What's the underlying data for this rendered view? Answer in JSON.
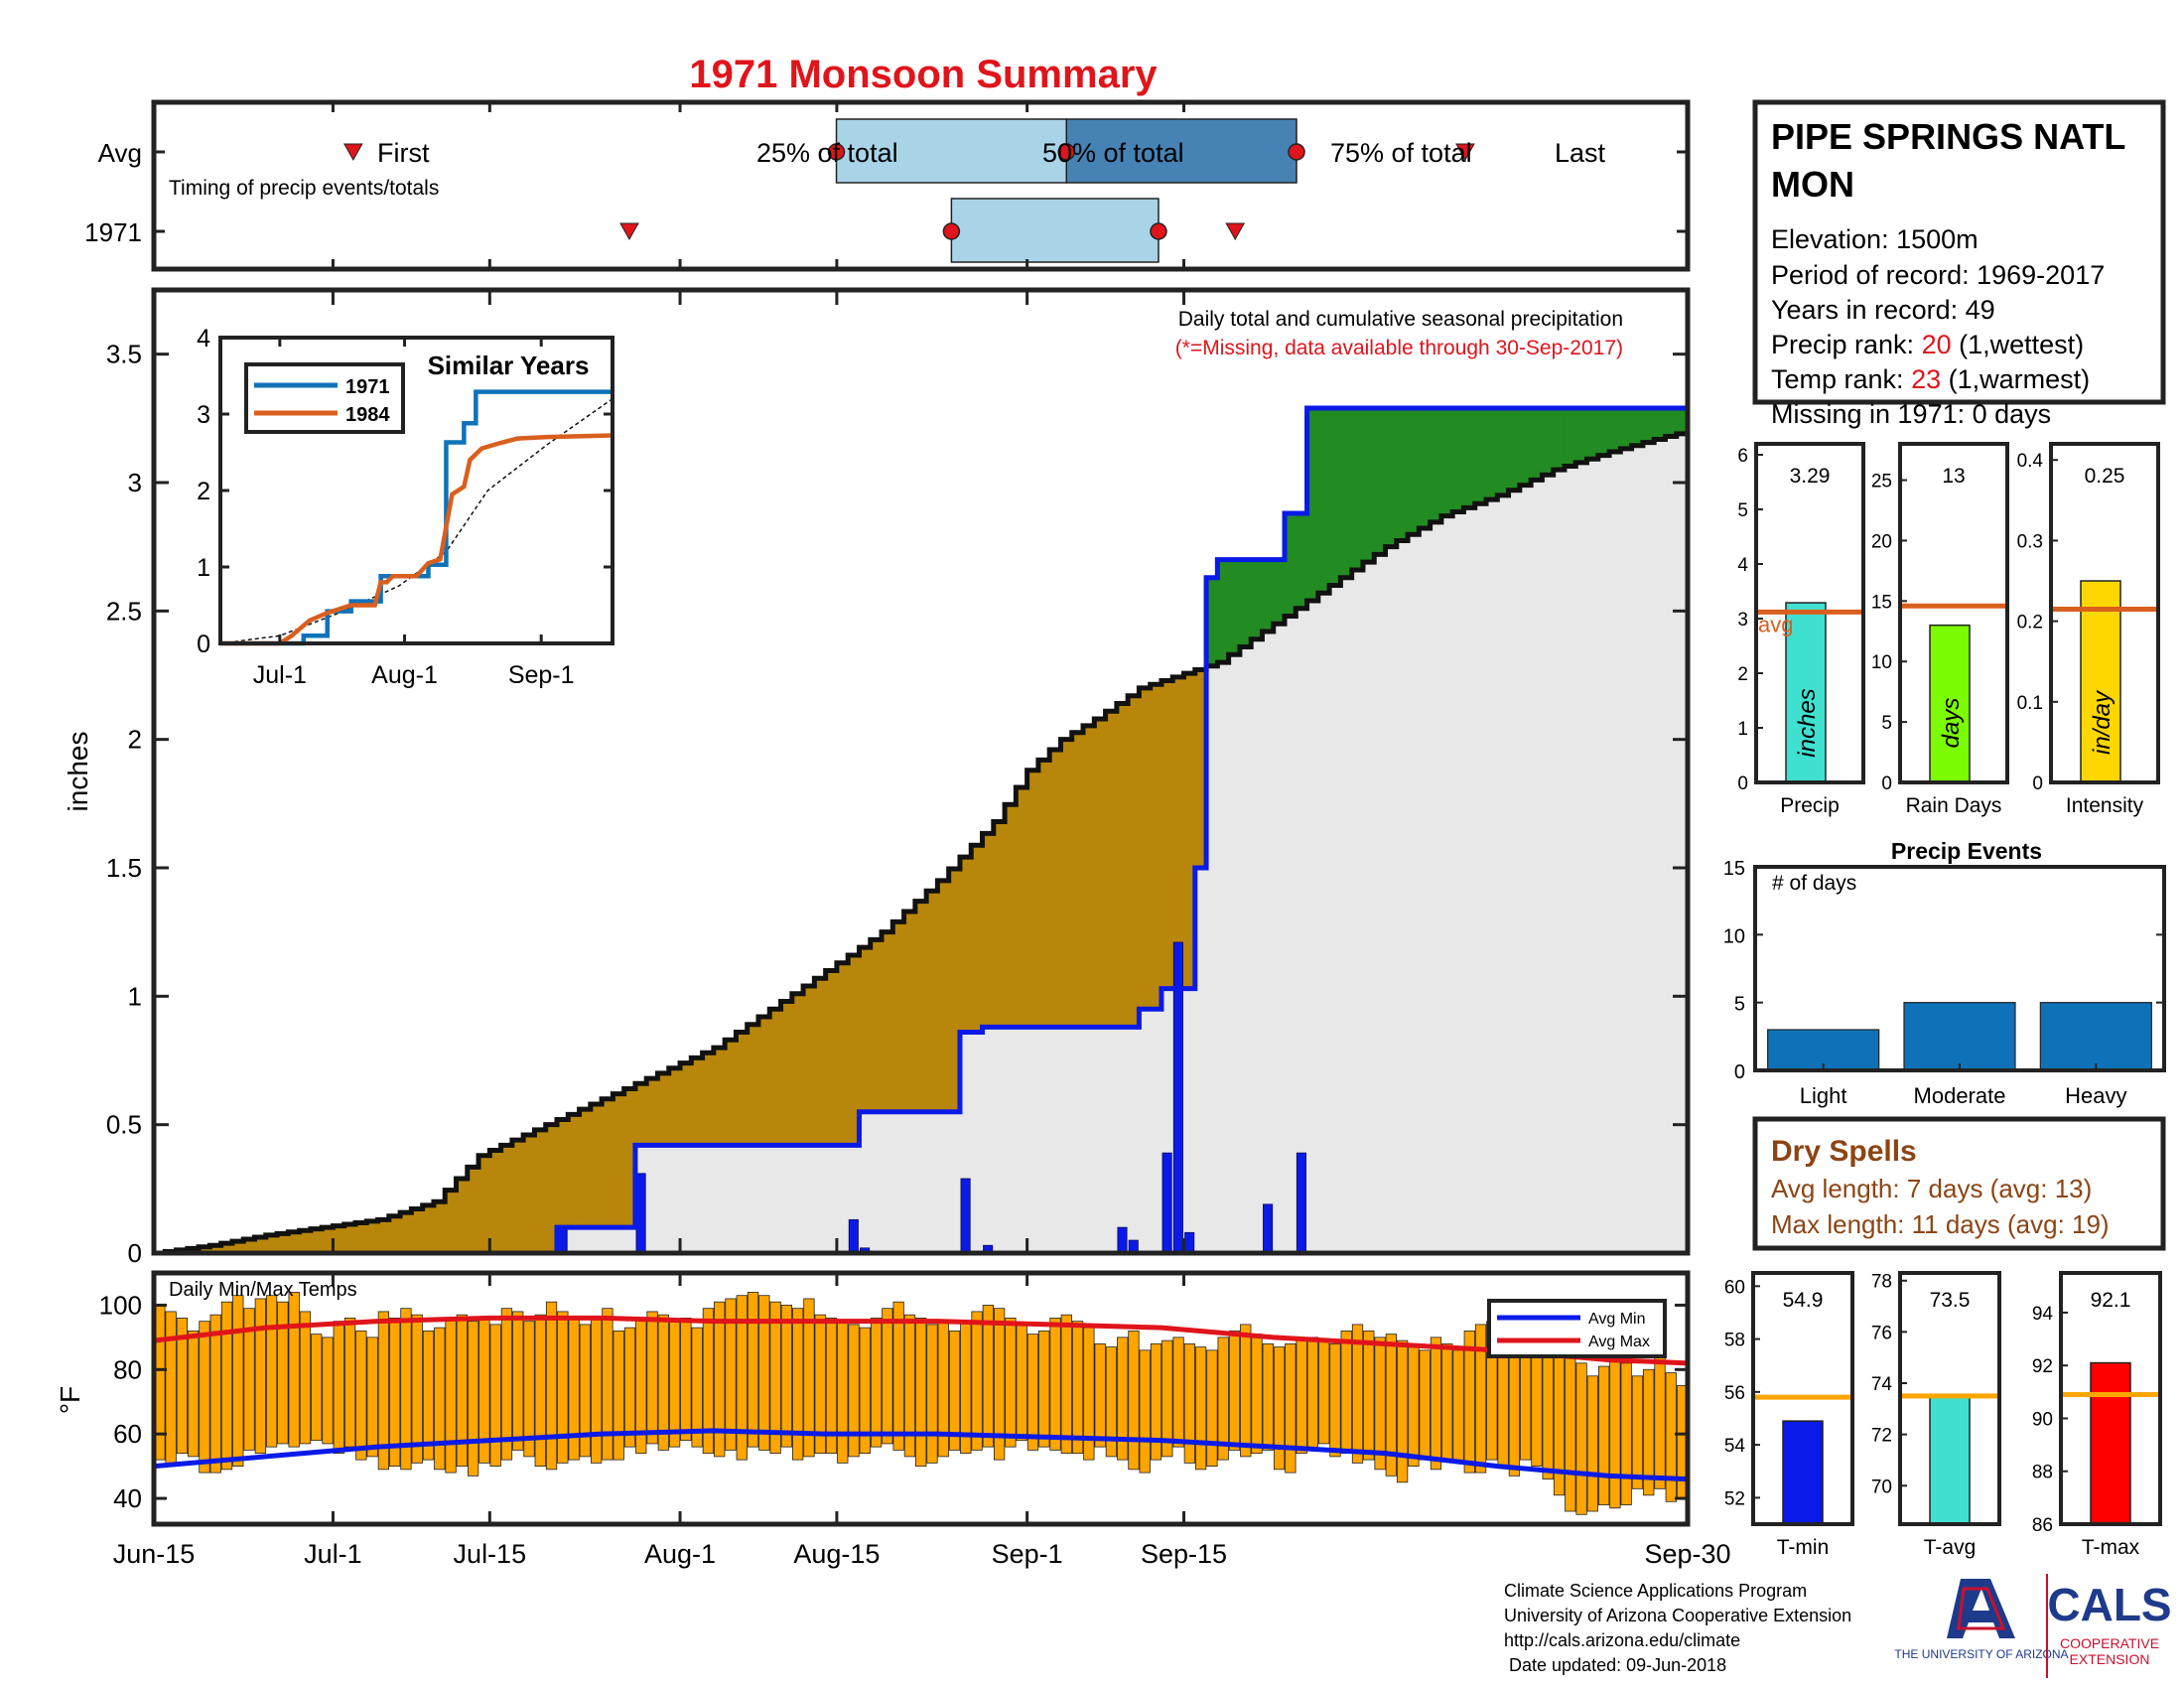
{
  "title": "1971 Monsoon Summary",
  "station": {
    "name_line1": "PIPE SPRINGS NATL",
    "name_line2": "MON",
    "elevation": "Elevation: 1500m",
    "period": "Period of record: 1969-2017",
    "years": "Years in record: 49",
    "precip_rank_label": "Precip rank: ",
    "precip_rank_value": "20",
    "precip_rank_note": " (1,wettest)",
    "temp_rank_label": "Temp rank: ",
    "temp_rank_value": "23",
    "temp_rank_note": " (1,warmest)",
    "missing": "Missing in 1971: 0 days"
  },
  "timing": {
    "row_avg": "Avg",
    "row_year": "1971",
    "caption": "Timing of precip events/totals",
    "avg_first": "First",
    "avg_25": "25% of total",
    "avg_50": "50% of total",
    "avg_75": "75% of total",
    "avg_last": "Last",
    "x_avg": {
      "first": 13.0,
      "p25": 44.5,
      "p50": 59.5,
      "p75": 74.5,
      "last": 85.5
    },
    "x_year": {
      "first": 31.0,
      "p25": 52.0,
      "p50": 59.0,
      "p75": 65.5,
      "last": 70.5
    }
  },
  "main": {
    "note1": "Daily total and cumulative seasonal precipitation",
    "note2": "(*=Missing, data available through 30-Sep-2017)",
    "ylabel": "inches",
    "yticks": [
      "0",
      "0.5",
      "1",
      "1.5",
      "2",
      "2.5",
      "3",
      "3.5"
    ],
    "xticks": [
      "Jun-15",
      "Jul-1",
      "Jul-15",
      "Aug-1",
      "Aug-15",
      "Sep-1",
      "Sep-15",
      "Sep-30"
    ]
  },
  "inset": {
    "title": "Similar Years",
    "legend": [
      "1971",
      "1984"
    ],
    "yticks": [
      "0",
      "1",
      "2",
      "3",
      "4"
    ],
    "xticks": [
      "Jul-1",
      "Aug-1",
      "Sep-1"
    ]
  },
  "small_bars": [
    {
      "label": "Precip",
      "value_text": "3.29",
      "unit": "inches",
      "avg_label": "avg",
      "yticks": [
        "0",
        "1",
        "2",
        "3",
        "4",
        "5",
        "6"
      ]
    },
    {
      "label": "Rain Days",
      "value_text": "13",
      "unit": "days",
      "yticks": [
        "0",
        "5",
        "10",
        "15",
        "20",
        "25"
      ]
    },
    {
      "label": "Intensity",
      "value_text": "0.25",
      "unit": "in/day",
      "yticks": [
        "0",
        "0.1",
        "0.2",
        "0.3",
        "0.4"
      ]
    }
  ],
  "events": {
    "title": "Precip Events",
    "ylabel": "# of days",
    "categories": [
      "Light",
      "Moderate",
      "Heavy"
    ],
    "yticks": [
      "0",
      "5",
      "10",
      "15"
    ]
  },
  "dry": {
    "title": "Dry Spells",
    "avg_length": "Avg length: 7 days (avg: 13)",
    "max_length": "Max length: 11 days (avg: 19)"
  },
  "temps": {
    "caption": "Daily Min/Max Temps",
    "ylabel": "°F",
    "yticks": [
      "40",
      "60",
      "80",
      "100"
    ],
    "legend_min": "Avg Min",
    "legend_max": "Avg Max"
  },
  "temp_bars": [
    {
      "label": "T-min",
      "value_text": "54.9",
      "yticks": [
        "52",
        "54",
        "56",
        "58",
        "60"
      ]
    },
    {
      "label": "T-avg",
      "value_text": "73.5",
      "yticks": [
        "70",
        "72",
        "74",
        "76",
        "78"
      ]
    },
    {
      "label": "T-max",
      "value_text": "92.1",
      "yticks": [
        "86",
        "88",
        "90",
        "92",
        "94"
      ]
    }
  ],
  "footer": {
    "line1": "Climate Science Applications Program",
    "line2": "University of Arizona Cooperative Extension",
    "line3": "http://cals.arizona.edu/climate",
    "line4": "Date updated: 09-Jun-2018",
    "ua_logo_text": "THE UNIVERSITY OF ARIZONA",
    "cals_logo": "CALS",
    "cals_sub1": "COOPERATIVE",
    "cals_sub2": "EXTENSION"
  },
  "colors": {
    "title_red": "#e0141b",
    "rank_red": "#e0141b",
    "dry_brown": "#8b4513",
    "deficit": "#b8860b",
    "surplus": "#228b22",
    "normal_fill": "#e8e8e8",
    "year_line": "#0a1ae8",
    "daily_bars": "#0a1ae8",
    "orange_avg": "#d95f1e",
    "temp_bar": "#ffa500",
    "light_blue_box": "#a9d4e8",
    "dark_blue_box": "#4682b4"
  },
  "chart_data": [
    {
      "type": "area",
      "name": "cumulative_precip",
      "x_unit": "day since Jun-15",
      "average_cumulative": [
        [
          0,
          0
        ],
        [
          5,
          0.03
        ],
        [
          10,
          0.07
        ],
        [
          15,
          0.1
        ],
        [
          20,
          0.13
        ],
        [
          25,
          0.2
        ],
        [
          29,
          0.38
        ],
        [
          35,
          0.5
        ],
        [
          40,
          0.6
        ],
        [
          45,
          0.7
        ],
        [
          50,
          0.8
        ],
        [
          55,
          0.95
        ],
        [
          60,
          1.1
        ],
        [
          65,
          1.25
        ],
        [
          70,
          1.45
        ],
        [
          75,
          1.68
        ],
        [
          78,
          1.88
        ],
        [
          81,
          2.0
        ],
        [
          84,
          2.08
        ],
        [
          88,
          2.2
        ],
        [
          95,
          2.3
        ],
        [
          100,
          2.45
        ],
        [
          105,
          2.6
        ],
        [
          110,
          2.75
        ],
        [
          115,
          2.87
        ],
        [
          120,
          2.95
        ],
        [
          125,
          3.05
        ],
        [
          130,
          3.12
        ],
        [
          135,
          3.18
        ],
        [
          137,
          3.2
        ]
      ],
      "year_cumulative": [
        [
          0,
          0
        ],
        [
          36,
          0
        ],
        [
          36,
          0.1
        ],
        [
          43,
          0.1
        ],
        [
          43,
          0.42
        ],
        [
          63,
          0.42
        ],
        [
          63,
          0.55
        ],
        [
          72,
          0.55
        ],
        [
          72,
          0.86
        ],
        [
          74,
          0.86
        ],
        [
          74,
          0.88
        ],
        [
          88,
          0.88
        ],
        [
          88,
          0.95
        ],
        [
          90,
          0.95
        ],
        [
          90,
          1.03
        ],
        [
          93,
          1.03
        ],
        [
          93,
          1.5
        ],
        [
          94,
          1.5
        ],
        [
          94,
          2.63
        ],
        [
          95,
          2.63
        ],
        [
          95,
          2.7
        ],
        [
          101,
          2.7
        ],
        [
          101,
          2.88
        ],
        [
          103,
          2.88
        ],
        [
          103,
          3.29
        ],
        [
          137,
          3.29
        ]
      ],
      "daily_precip": [
        [
          36,
          0.1
        ],
        [
          43,
          0.31
        ],
        [
          62,
          0.13
        ],
        [
          63,
          0.02
        ],
        [
          72,
          0.29
        ],
        [
          74,
          0.03
        ],
        [
          86,
          0.1
        ],
        [
          87,
          0.05
        ],
        [
          90,
          0.39
        ],
        [
          91,
          1.21
        ],
        [
          92,
          0.08
        ],
        [
          99,
          0.19
        ],
        [
          102,
          0.39
        ]
      ],
      "ylim": [
        0,
        3.75
      ]
    },
    {
      "type": "line",
      "name": "similar_years",
      "title": "Similar Years",
      "series": [
        {
          "name": "1971",
          "values": [
            [
              0,
              0
            ],
            [
              14,
              0
            ],
            [
              14,
              0.1
            ],
            [
              18,
              0.1
            ],
            [
              18,
              0.42
            ],
            [
              22,
              0.42
            ],
            [
              22,
              0.55
            ],
            [
              27,
              0.55
            ],
            [
              27,
              0.88
            ],
            [
              35,
              0.88
            ],
            [
              35,
              1.03
            ],
            [
              38,
              1.03
            ],
            [
              38,
              2.63
            ],
            [
              41,
              2.63
            ],
            [
              41,
              2.88
            ],
            [
              43,
              2.88
            ],
            [
              43,
              3.29
            ],
            [
              66,
              3.29
            ]
          ]
        },
        {
          "name": "1984",
          "values": [
            [
              0,
              0
            ],
            [
              10,
              0
            ],
            [
              12,
              0.1
            ],
            [
              15,
              0.3
            ],
            [
              18,
              0.4
            ],
            [
              22,
              0.5
            ],
            [
              26,
              0.5
            ],
            [
              27,
              0.8
            ],
            [
              28,
              0.8
            ],
            [
              29,
              0.88
            ],
            [
              33,
              0.88
            ],
            [
              35,
              1.05
            ],
            [
              37,
              1.1
            ],
            [
              39,
              1.95
            ],
            [
              40,
              2.0
            ],
            [
              41,
              2.05
            ],
            [
              42,
              2.4
            ],
            [
              44,
              2.55
            ],
            [
              47,
              2.62
            ],
            [
              50,
              2.68
            ],
            [
              55,
              2.7
            ],
            [
              66,
              2.72
            ]
          ]
        }
      ],
      "average": [
        [
          0,
          0
        ],
        [
          10,
          0.1
        ],
        [
          20,
          0.4
        ],
        [
          30,
          0.75
        ],
        [
          38,
          1.2
        ],
        [
          45,
          2.0
        ],
        [
          55,
          2.6
        ],
        [
          66,
          3.2
        ]
      ],
      "ylim": [
        0,
        4
      ]
    },
    {
      "type": "bar",
      "name": "season_totals",
      "categories": [
        "Precip",
        "Rain Days",
        "Intensity"
      ],
      "values": [
        3.29,
        13,
        0.25
      ],
      "averages": [
        3.12,
        14.6,
        0.215
      ],
      "ylims": [
        [
          0,
          6.2
        ],
        [
          0,
          28
        ],
        [
          0,
          0.42
        ]
      ]
    },
    {
      "type": "bar",
      "name": "precip_events",
      "categories": [
        "Light",
        "Moderate",
        "Heavy"
      ],
      "values": [
        3,
        5,
        5
      ],
      "ylim": [
        0,
        15
      ]
    },
    {
      "type": "bar",
      "name": "daily_temps",
      "ylim": [
        32,
        110
      ],
      "tmax": [
        100,
        98,
        96,
        92,
        95,
        97,
        101,
        103,
        99,
        102,
        103,
        101,
        104,
        98,
        91,
        90,
        95,
        96,
        92,
        90,
        98,
        96,
        99,
        97,
        92,
        93,
        96,
        97,
        95,
        96,
        94,
        99,
        98,
        95,
        97,
        101,
        98,
        96,
        94,
        96,
        99,
        92,
        93,
        96,
        98,
        97,
        95,
        96,
        93,
        99,
        101,
        102,
        103,
        104,
        103,
        101,
        100,
        99,
        102,
        97,
        96,
        95,
        94,
        93,
        96,
        99,
        101,
        97,
        96,
        94,
        95,
        92,
        95,
        98,
        100,
        99,
        96,
        94,
        91,
        92,
        96,
        97,
        95,
        93,
        88,
        87,
        90,
        92,
        86,
        88,
        89,
        90,
        88,
        87,
        86,
        90,
        92,
        94,
        91,
        88,
        87,
        88,
        89,
        90,
        89,
        88,
        92,
        94,
        92,
        90,
        91,
        89,
        88,
        86,
        90,
        88,
        86,
        92,
        94,
        95,
        96,
        93,
        92,
        95,
        94,
        90,
        88,
        82,
        78,
        81,
        84,
        82,
        78,
        80,
        84,
        79,
        75
      ],
      "tmin": [
        52,
        51,
        54,
        53,
        48,
        48,
        49,
        50,
        55,
        54,
        56,
        57,
        56,
        57,
        58,
        57,
        54,
        56,
        52,
        53,
        49,
        50,
        49,
        51,
        52,
        49,
        48,
        50,
        47,
        51,
        50,
        52,
        55,
        53,
        50,
        49,
        51,
        52,
        53,
        51,
        52,
        52,
        56,
        54,
        57,
        55,
        56,
        58,
        56,
        54,
        53,
        55,
        52,
        56,
        55,
        54,
        56,
        52,
        53,
        54,
        54,
        51,
        53,
        54,
        56,
        57,
        55,
        53,
        50,
        51,
        53,
        55,
        54,
        55,
        56,
        52,
        56,
        58,
        55,
        56,
        55,
        54,
        54,
        52,
        56,
        53,
        52,
        49,
        48,
        52,
        53,
        56,
        51,
        49,
        50,
        52,
        55,
        53,
        54,
        55,
        49,
        48,
        54,
        55,
        57,
        53,
        54,
        51,
        52,
        49,
        47,
        45,
        50,
        52,
        49,
        52,
        51,
        48,
        48,
        52,
        50,
        47,
        52,
        50,
        46,
        41,
        36,
        35,
        36,
        38,
        37,
        38,
        43,
        41,
        43,
        39,
        40
      ],
      "avg_max": [
        [
          0,
          89
        ],
        [
          10,
          93
        ],
        [
          20,
          95
        ],
        [
          30,
          96
        ],
        [
          40,
          96
        ],
        [
          50,
          95
        ],
        [
          60,
          95
        ],
        [
          70,
          95
        ],
        [
          80,
          94
        ],
        [
          90,
          93
        ],
        [
          100,
          90
        ],
        [
          110,
          88
        ],
        [
          120,
          86
        ],
        [
          130,
          83
        ],
        [
          137,
          82
        ]
      ],
      "avg_min": [
        [
          0,
          50
        ],
        [
          10,
          53
        ],
        [
          20,
          56
        ],
        [
          30,
          58
        ],
        [
          40,
          60
        ],
        [
          50,
          61
        ],
        [
          60,
          60
        ],
        [
          70,
          60
        ],
        [
          80,
          59
        ],
        [
          90,
          58
        ],
        [
          100,
          56
        ],
        [
          110,
          54
        ],
        [
          120,
          50
        ],
        [
          130,
          47
        ],
        [
          137,
          46
        ]
      ]
    },
    {
      "type": "bar",
      "name": "season_temps",
      "categories": [
        "T-min",
        "T-avg",
        "T-max"
      ],
      "values": [
        54.9,
        73.5,
        92.1
      ],
      "averages": [
        55.8,
        73.5,
        90.9
      ],
      "ylims": [
        [
          51,
          60.5
        ],
        [
          68.5,
          78.3
        ],
        [
          86,
          95.5
        ]
      ]
    }
  ]
}
